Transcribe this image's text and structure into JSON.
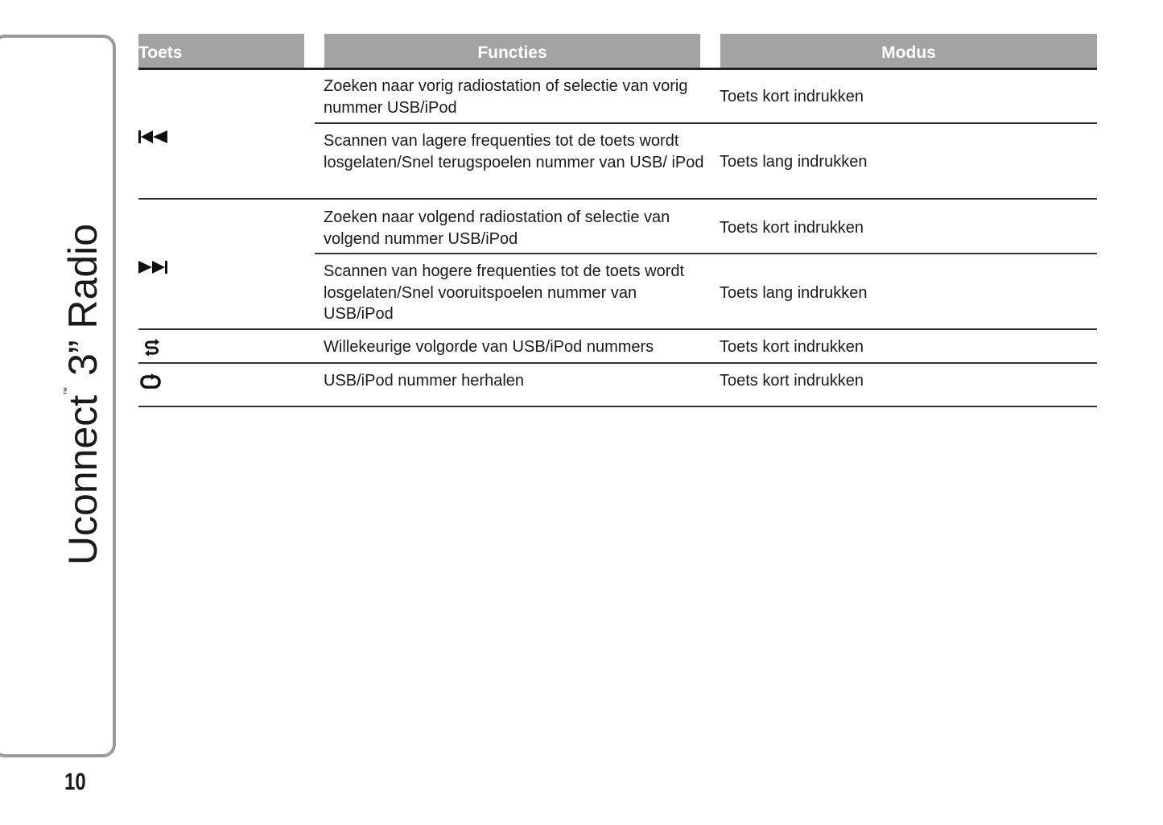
{
  "side_title": {
    "main": "Uconnect",
    "tm": "™",
    "rest": " 3” Radio"
  },
  "page_number": "10",
  "headers": [
    "Toets",
    "Functies",
    "Modus"
  ],
  "rows": [
    {
      "icon": "previous-track-icon",
      "function": "Zoeken naar vorig radiostation of selectie van vorig nummer USB/iPod",
      "mode": "Toets kort indrukken"
    },
    {
      "icon": "previous-track-icon",
      "function": "Scannen van lagere frequenties tot de toets wordt losgelaten/Snel terugspoelen nummer van USB/ iPod",
      "mode": "Toets lang indrukken"
    },
    {
      "icon": "next-track-icon",
      "function": "Zoeken naar volgend radiostation of selectie van volgend nummer USB/iPod",
      "mode": "Toets kort indrukken"
    },
    {
      "icon": "next-track-icon",
      "function": "Scannen van hogere frequenties tot de toets wordt losgelaten/Snel vooruitspoelen nummer van USB/iPod",
      "mode": "Toets lang indrukken"
    },
    {
      "icon": "shuffle-icon",
      "function": "Willekeurige volgorde van USB/iPod nummers",
      "mode": "Toets kort indrukken"
    },
    {
      "icon": "repeat-icon",
      "function": "USB/iPod nummer herhalen",
      "mode": "Toets kort indrukken"
    }
  ]
}
